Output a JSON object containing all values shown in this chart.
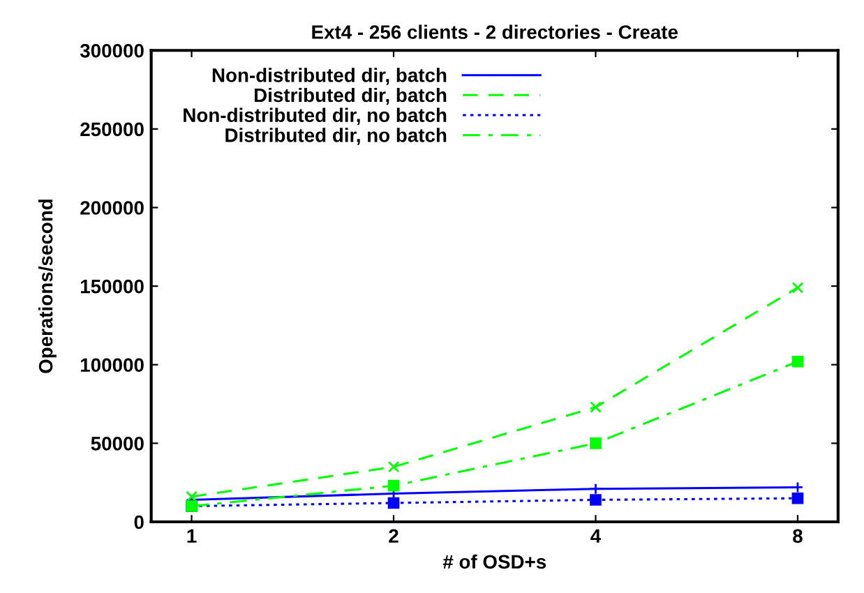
{
  "chart_data": {
    "type": "line",
    "title": "Ext4 - 256 clients - 2 directories - Create",
    "xlabel": "# of OSD+s",
    "ylabel": "Operations/second",
    "categories": [
      "1",
      "2",
      "4",
      "8"
    ],
    "series": [
      {
        "name": "Non-distributed dir, batch",
        "color": "#0000ff",
        "line_style": "solid",
        "marker": "plus",
        "values": [
          14000,
          18000,
          21000,
          22000
        ]
      },
      {
        "name": "Distributed dir, batch",
        "color": "#00ff00",
        "line_style": "dashed",
        "marker": "cross",
        "values": [
          16000,
          35000,
          73000,
          149000
        ]
      },
      {
        "name": "Non-distributed dir, no batch",
        "color": "#0000ff",
        "line_style": "dotted",
        "marker": "square",
        "values": [
          10000,
          12000,
          14000,
          15000
        ]
      },
      {
        "name": "Distributed dir, no batch",
        "color": "#00ff00",
        "line_style": "dashdot",
        "marker": "square",
        "values": [
          10000,
          23000,
          50000,
          102000
        ]
      }
    ],
    "ylim": [
      0,
      300000
    ],
    "yticks": [
      0,
      50000,
      100000,
      150000,
      200000,
      250000,
      300000
    ],
    "grid": false,
    "legend": "top left"
  }
}
